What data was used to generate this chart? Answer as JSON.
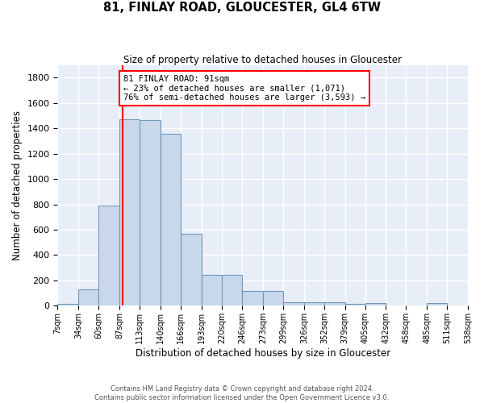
{
  "title1": "81, FINLAY ROAD, GLOUCESTER, GL4 6TW",
  "title2": "Size of property relative to detached houses in Gloucester",
  "xlabel": "Distribution of detached houses by size in Gloucester",
  "ylabel": "Number of detached properties",
  "bar_color": "#c8d8ea",
  "bar_edge_color": "#7098b8",
  "background_color": "#e8eef8",
  "grid_color": "white",
  "bin_edges": [
    7,
    34,
    60,
    87,
    113,
    140,
    166,
    193,
    220,
    246,
    273,
    299,
    326,
    352,
    379,
    405,
    432,
    458,
    485,
    511,
    538
  ],
  "bar_heights": [
    15,
    130,
    790,
    1470,
    1465,
    1355,
    570,
    245,
    245,
    115,
    115,
    30,
    28,
    25,
    15,
    20,
    0,
    0,
    20,
    0
  ],
  "tick_labels": [
    "7sqm",
    "34sqm",
    "60sqm",
    "87sqm",
    "113sqm",
    "140sqm",
    "166sqm",
    "193sqm",
    "220sqm",
    "246sqm",
    "273sqm",
    "299sqm",
    "326sqm",
    "352sqm",
    "379sqm",
    "405sqm",
    "432sqm",
    "458sqm",
    "485sqm",
    "511sqm",
    "538sqm"
  ],
  "red_line_x": 91,
  "annotation_text": "81 FINLAY ROAD: 91sqm\n← 23% of detached houses are smaller (1,071)\n76% of semi-detached houses are larger (3,593) →",
  "annotation_box_color": "white",
  "annotation_box_edge_color": "red",
  "ylim": [
    0,
    1900
  ],
  "yticks": [
    0,
    200,
    400,
    600,
    800,
    1000,
    1200,
    1400,
    1600,
    1800
  ],
  "footer1": "Contains HM Land Registry data © Crown copyright and database right 2024.",
  "footer2": "Contains public sector information licensed under the Open Government Licence v3.0."
}
